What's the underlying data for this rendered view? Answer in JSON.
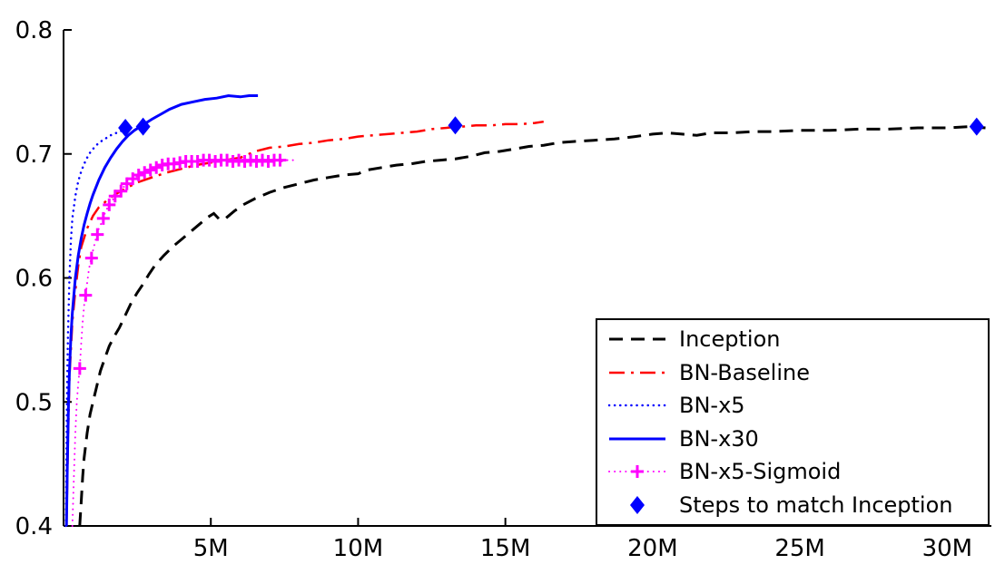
{
  "chart_data": {
    "type": "line",
    "title": "",
    "xlabel": "",
    "ylabel": "",
    "xlim": [
      0,
      31.5
    ],
    "ylim": [
      0.4,
      0.8
    ],
    "grid": false,
    "legend_position": "bottom-right",
    "axis_color": "#000000",
    "background_color": "#FFFFFF",
    "x_ticks": [
      5,
      10,
      15,
      20,
      25,
      30
    ],
    "x_tick_labels": [
      "5M",
      "10M",
      "15M",
      "20M",
      "25M",
      "30M"
    ],
    "y_ticks": [
      0.4,
      0.5,
      0.6,
      0.7,
      0.8
    ],
    "y_tick_labels": [
      "0.4",
      "0.5",
      "0.6",
      "0.7",
      "0.8"
    ],
    "series": [
      {
        "name": "inception",
        "label": "Inception",
        "color": "#000000",
        "line_style": "dashed",
        "line_width": 3,
        "marker": "none",
        "points": [
          [
            0.55,
            0.4
          ],
          [
            0.6,
            0.42
          ],
          [
            0.65,
            0.44
          ],
          [
            0.7,
            0.455
          ],
          [
            0.8,
            0.475
          ],
          [
            0.9,
            0.49
          ],
          [
            1.0,
            0.5
          ],
          [
            1.1,
            0.51
          ],
          [
            1.25,
            0.525
          ],
          [
            1.4,
            0.535
          ],
          [
            1.55,
            0.545
          ],
          [
            1.7,
            0.552
          ],
          [
            1.9,
            0.56
          ],
          [
            2.1,
            0.57
          ],
          [
            2.3,
            0.58
          ],
          [
            2.5,
            0.588
          ],
          [
            2.7,
            0.595
          ],
          [
            2.9,
            0.603
          ],
          [
            3.1,
            0.61
          ],
          [
            3.4,
            0.618
          ],
          [
            3.7,
            0.625
          ],
          [
            4.0,
            0.631
          ],
          [
            4.3,
            0.637
          ],
          [
            4.6,
            0.643
          ],
          [
            4.9,
            0.649
          ],
          [
            5.1,
            0.652
          ],
          [
            5.3,
            0.647
          ],
          [
            5.5,
            0.648
          ],
          [
            5.8,
            0.654
          ],
          [
            6.1,
            0.659
          ],
          [
            6.5,
            0.664
          ],
          [
            7.0,
            0.669
          ],
          [
            7.5,
            0.673
          ],
          [
            8.0,
            0.676
          ],
          [
            8.5,
            0.679
          ],
          [
            9.0,
            0.681
          ],
          [
            9.5,
            0.683
          ],
          [
            10.0,
            0.684
          ],
          [
            10.3,
            0.687
          ],
          [
            10.8,
            0.689
          ],
          [
            11.3,
            0.691
          ],
          [
            11.8,
            0.692
          ],
          [
            12.3,
            0.694
          ],
          [
            12.8,
            0.695
          ],
          [
            13.3,
            0.696
          ],
          [
            13.8,
            0.698
          ],
          [
            14.3,
            0.701
          ],
          [
            14.8,
            0.702
          ],
          [
            15.3,
            0.704
          ],
          [
            15.8,
            0.706
          ],
          [
            16.3,
            0.707
          ],
          [
            16.8,
            0.709
          ],
          [
            17.3,
            0.71
          ],
          [
            18.0,
            0.711
          ],
          [
            18.7,
            0.712
          ],
          [
            19.4,
            0.714
          ],
          [
            20.0,
            0.716
          ],
          [
            20.5,
            0.717
          ],
          [
            21.0,
            0.716
          ],
          [
            21.5,
            0.715
          ],
          [
            22.0,
            0.717
          ],
          [
            22.7,
            0.717
          ],
          [
            23.4,
            0.718
          ],
          [
            24.1,
            0.718
          ],
          [
            25.0,
            0.719
          ],
          [
            26.0,
            0.719
          ],
          [
            27.0,
            0.72
          ],
          [
            28.0,
            0.72
          ],
          [
            29.0,
            0.721
          ],
          [
            30.0,
            0.721
          ],
          [
            30.7,
            0.722
          ],
          [
            31.3,
            0.721
          ]
        ]
      },
      {
        "name": "bn-baseline",
        "label": "BN-Baseline",
        "color": "#FF0000",
        "line_style": "dashdot",
        "line_width": 2.5,
        "marker": "none",
        "points": [
          [
            0.1,
            0.4
          ],
          [
            0.15,
            0.47
          ],
          [
            0.2,
            0.52
          ],
          [
            0.3,
            0.565
          ],
          [
            0.4,
            0.59
          ],
          [
            0.5,
            0.61
          ],
          [
            0.6,
            0.625
          ],
          [
            0.8,
            0.64
          ],
          [
            1.0,
            0.65
          ],
          [
            1.2,
            0.657
          ],
          [
            1.5,
            0.663
          ],
          [
            1.8,
            0.668
          ],
          [
            2.1,
            0.672
          ],
          [
            2.5,
            0.677
          ],
          [
            3.0,
            0.681
          ],
          [
            3.5,
            0.685
          ],
          [
            4.0,
            0.688
          ],
          [
            4.5,
            0.691
          ],
          [
            5.0,
            0.693
          ],
          [
            5.5,
            0.695
          ],
          [
            6.0,
            0.697
          ],
          [
            6.5,
            0.702
          ],
          [
            7.0,
            0.705
          ],
          [
            7.5,
            0.706
          ],
          [
            8.0,
            0.708
          ],
          [
            8.5,
            0.709
          ],
          [
            9.0,
            0.711
          ],
          [
            9.5,
            0.712
          ],
          [
            10.0,
            0.714
          ],
          [
            10.5,
            0.715
          ],
          [
            11.0,
            0.716
          ],
          [
            11.5,
            0.717
          ],
          [
            12.0,
            0.718
          ],
          [
            12.5,
            0.72
          ],
          [
            13.0,
            0.721
          ],
          [
            13.3,
            0.722
          ],
          [
            13.5,
            0.722
          ],
          [
            14.0,
            0.723
          ],
          [
            14.5,
            0.723
          ],
          [
            15.0,
            0.724
          ],
          [
            15.5,
            0.724
          ],
          [
            16.0,
            0.725
          ],
          [
            16.3,
            0.726
          ]
        ]
      },
      {
        "name": "bn-x5",
        "label": "BN-x5",
        "color": "#0000FF",
        "line_style": "dotted",
        "line_width": 2.5,
        "marker": "none",
        "points": [
          [
            0.08,
            0.4
          ],
          [
            0.1,
            0.46
          ],
          [
            0.12,
            0.51
          ],
          [
            0.15,
            0.555
          ],
          [
            0.2,
            0.6
          ],
          [
            0.25,
            0.63
          ],
          [
            0.3,
            0.648
          ],
          [
            0.4,
            0.666
          ],
          [
            0.5,
            0.678
          ],
          [
            0.6,
            0.686
          ],
          [
            0.7,
            0.692
          ],
          [
            0.8,
            0.697
          ],
          [
            0.9,
            0.701
          ],
          [
            1.0,
            0.704
          ],
          [
            1.2,
            0.709
          ],
          [
            1.4,
            0.712
          ],
          [
            1.6,
            0.715
          ],
          [
            1.8,
            0.717
          ],
          [
            2.0,
            0.719
          ],
          [
            2.1,
            0.72
          ]
        ]
      },
      {
        "name": "bn-x30",
        "label": "BN-x30",
        "color": "#0000FF",
        "line_style": "solid",
        "line_width": 3,
        "marker": "none",
        "points": [
          [
            0.1,
            0.4
          ],
          [
            0.13,
            0.45
          ],
          [
            0.17,
            0.5
          ],
          [
            0.2,
            0.525
          ],
          [
            0.25,
            0.553
          ],
          [
            0.3,
            0.572
          ],
          [
            0.4,
            0.6
          ],
          [
            0.5,
            0.618
          ],
          [
            0.6,
            0.632
          ],
          [
            0.7,
            0.643
          ],
          [
            0.8,
            0.652
          ],
          [
            0.9,
            0.66
          ],
          [
            1.0,
            0.667
          ],
          [
            1.2,
            0.679
          ],
          [
            1.4,
            0.689
          ],
          [
            1.6,
            0.697
          ],
          [
            1.8,
            0.704
          ],
          [
            2.0,
            0.71
          ],
          [
            2.2,
            0.715
          ],
          [
            2.4,
            0.719
          ],
          [
            2.6,
            0.722
          ],
          [
            2.8,
            0.725
          ],
          [
            3.0,
            0.728
          ],
          [
            3.3,
            0.732
          ],
          [
            3.6,
            0.736
          ],
          [
            4.0,
            0.74
          ],
          [
            4.4,
            0.742
          ],
          [
            4.8,
            0.744
          ],
          [
            5.2,
            0.745
          ],
          [
            5.6,
            0.747
          ],
          [
            6.0,
            0.746
          ],
          [
            6.3,
            0.747
          ],
          [
            6.6,
            0.747
          ]
        ]
      },
      {
        "name": "bn-x5-sigmoid",
        "label": "BN-x5-Sigmoid",
        "color": "#FF00FF",
        "line_style": "dotted",
        "line_width": 2,
        "marker": "plus",
        "points": [
          [
            0.3,
            0.4
          ],
          [
            0.35,
            0.44
          ],
          [
            0.4,
            0.475
          ],
          [
            0.45,
            0.5
          ],
          [
            0.5,
            0.515
          ],
          [
            0.55,
            0.527
          ],
          [
            0.6,
            0.548
          ],
          [
            0.65,
            0.565
          ],
          [
            0.7,
            0.578
          ],
          [
            0.75,
            0.586
          ],
          [
            0.8,
            0.596
          ],
          [
            0.85,
            0.605
          ],
          [
            0.9,
            0.612
          ],
          [
            0.95,
            0.616
          ],
          [
            1.0,
            0.622
          ],
          [
            1.1,
            0.632
          ],
          [
            1.2,
            0.64
          ],
          [
            1.3,
            0.645
          ],
          [
            1.4,
            0.652
          ],
          [
            1.5,
            0.657
          ],
          [
            1.6,
            0.661
          ],
          [
            1.7,
            0.664
          ],
          [
            1.8,
            0.667
          ],
          [
            1.9,
            0.669
          ],
          [
            2.0,
            0.672
          ],
          [
            2.1,
            0.675
          ],
          [
            2.2,
            0.677
          ],
          [
            2.35,
            0.68
          ],
          [
            2.5,
            0.682
          ],
          [
            2.65,
            0.684
          ],
          [
            2.8,
            0.686
          ],
          [
            3.0,
            0.688
          ],
          [
            3.2,
            0.69
          ],
          [
            3.4,
            0.691
          ],
          [
            3.6,
            0.692
          ],
          [
            3.8,
            0.692
          ],
          [
            4.0,
            0.693
          ],
          [
            4.2,
            0.694
          ],
          [
            4.4,
            0.694
          ],
          [
            4.6,
            0.695
          ],
          [
            4.8,
            0.695
          ],
          [
            5.0,
            0.695
          ],
          [
            5.2,
            0.694
          ],
          [
            5.4,
            0.695
          ],
          [
            5.6,
            0.695
          ],
          [
            5.8,
            0.694
          ],
          [
            6.0,
            0.695
          ],
          [
            6.2,
            0.694
          ],
          [
            6.4,
            0.695
          ],
          [
            6.6,
            0.695
          ],
          [
            6.8,
            0.694
          ],
          [
            7.0,
            0.695
          ],
          [
            7.2,
            0.695
          ],
          [
            7.4,
            0.694
          ],
          [
            7.6,
            0.695
          ],
          [
            7.8,
            0.695
          ]
        ],
        "marker_points": [
          [
            0.55,
            0.527
          ],
          [
            0.75,
            0.586
          ],
          [
            0.95,
            0.616
          ],
          [
            1.15,
            0.635
          ],
          [
            1.35,
            0.648
          ],
          [
            1.55,
            0.659
          ],
          [
            1.75,
            0.666
          ],
          [
            1.95,
            0.67
          ],
          [
            2.15,
            0.676
          ],
          [
            2.35,
            0.68
          ],
          [
            2.55,
            0.683
          ],
          [
            2.75,
            0.685
          ],
          [
            2.95,
            0.687
          ],
          [
            3.15,
            0.689
          ],
          [
            3.35,
            0.691
          ],
          [
            3.55,
            0.692
          ],
          [
            3.75,
            0.692
          ],
          [
            3.95,
            0.693
          ],
          [
            4.15,
            0.694
          ],
          [
            4.35,
            0.694
          ],
          [
            4.55,
            0.694
          ],
          [
            4.75,
            0.695
          ],
          [
            4.95,
            0.695
          ],
          [
            5.15,
            0.694
          ],
          [
            5.35,
            0.695
          ],
          [
            5.55,
            0.695
          ],
          [
            5.75,
            0.694
          ],
          [
            5.95,
            0.695
          ],
          [
            6.15,
            0.694
          ],
          [
            6.35,
            0.695
          ],
          [
            6.55,
            0.694
          ],
          [
            6.75,
            0.695
          ],
          [
            6.95,
            0.694
          ],
          [
            7.15,
            0.695
          ],
          [
            7.35,
            0.695
          ]
        ]
      },
      {
        "name": "steps-to-match-inception",
        "label": "Steps to match Inception",
        "color": "#0000FF",
        "line_style": "none",
        "line_width": 0,
        "marker": "diamond",
        "points": [
          [
            2.1,
            0.721
          ],
          [
            2.7,
            0.722
          ],
          [
            13.3,
            0.723
          ],
          [
            31.0,
            0.722
          ]
        ]
      }
    ]
  }
}
